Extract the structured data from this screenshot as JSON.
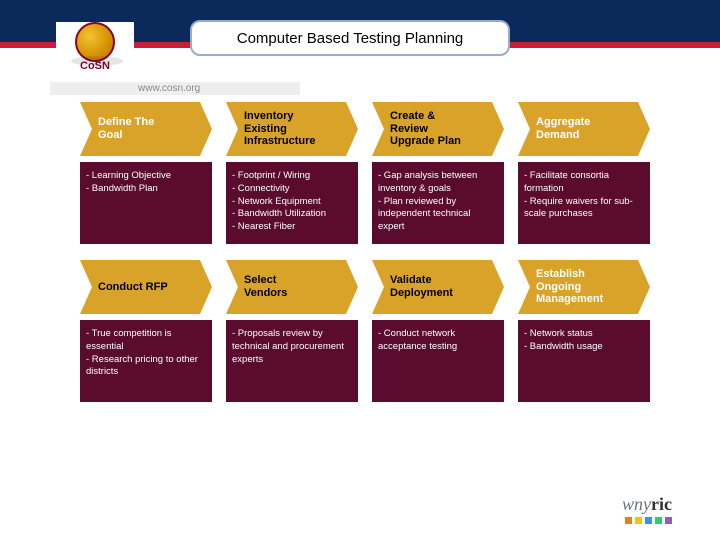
{
  "header": {
    "bar_color": "#0b2a5b",
    "accent_color": "#c41e3a"
  },
  "title": "Computer Based Testing Planning",
  "logo": {
    "text": "CoSN",
    "url_label": "www.cosn.org"
  },
  "arrow_color": "#d9a32a",
  "arrow_text_color": "#ffffff",
  "arrow_alt_text_color": "#000000",
  "detail_color": "#5a0b2e",
  "steps_row1": [
    {
      "title": "Define The\nGoal",
      "title_dark": false,
      "detail": "- Learning Objective\n- Bandwidth Plan"
    },
    {
      "title": "Inventory\nExisting\nInfrastructure",
      "title_dark": true,
      "detail": "- Footprint / Wiring\n- Connectivity\n- Network Equipment\n- Bandwidth Utilization\n- Nearest Fiber"
    },
    {
      "title": "Create &\nReview\nUpgrade Plan",
      "title_dark": true,
      "detail": "- Gap analysis between inventory & goals\n- Plan reviewed by independent technical expert"
    },
    {
      "title": "Aggregate\nDemand",
      "title_dark": false,
      "detail": "- Facilitate consortia formation\n- Require waivers for sub-scale purchases"
    }
  ],
  "steps_row2": [
    {
      "title": "Conduct RFP",
      "title_dark": true,
      "detail": "- True competition is essential\n- Research pricing to other districts"
    },
    {
      "title": "Select\nVendors",
      "title_dark": true,
      "detail": "- Proposals review by technical and procurement experts"
    },
    {
      "title": "Validate\nDeployment",
      "title_dark": true,
      "detail": "- Conduct network acceptance testing"
    },
    {
      "title": "Establish\nOngoing\nManagement",
      "title_dark": false,
      "detail": "- Network status\n- Bandwidth usage"
    }
  ],
  "footer": {
    "wny": "wny",
    "ric": "ric",
    "dot_colors": [
      "#e67e22",
      "#f1c40f",
      "#3498db",
      "#2ecc71",
      "#9b59b6"
    ]
  }
}
